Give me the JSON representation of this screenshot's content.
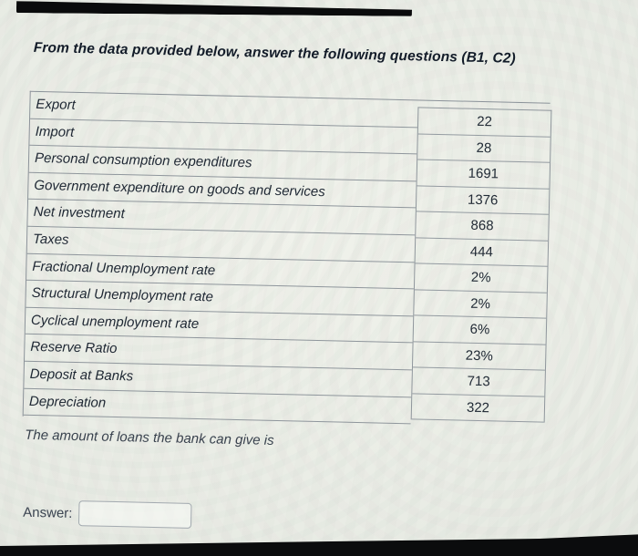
{
  "title": "From the data provided below, answer the following questions (B1, C2)",
  "table": {
    "rows": [
      {
        "label": "Export",
        "value": "22"
      },
      {
        "label": "Import",
        "value": "28"
      },
      {
        "label": "Personal consumption expenditures",
        "value": "1691"
      },
      {
        "label": "Government expenditure on goods and services",
        "value": "1376"
      },
      {
        "label": "Net investment",
        "value": "868"
      },
      {
        "label": "Taxes",
        "value": "444"
      },
      {
        "label": "Fractional Unemployment rate",
        "value": "2%"
      },
      {
        "label": "Structural Unemployment rate",
        "value": "2%"
      },
      {
        "label": "Cyclical unemployment rate",
        "value": "6%"
      },
      {
        "label": "Reserve Ratio",
        "value": "23%"
      },
      {
        "label": "Deposit at Banks",
        "value": "713"
      },
      {
        "label": "Depreciation",
        "value": "322"
      }
    ]
  },
  "question": "The amount of loans the bank can give is",
  "answer": {
    "label": "Answer:",
    "value": ""
  },
  "colors": {
    "text": "#1e2733",
    "border": "#8b9299",
    "background": "#e8ebe4"
  }
}
